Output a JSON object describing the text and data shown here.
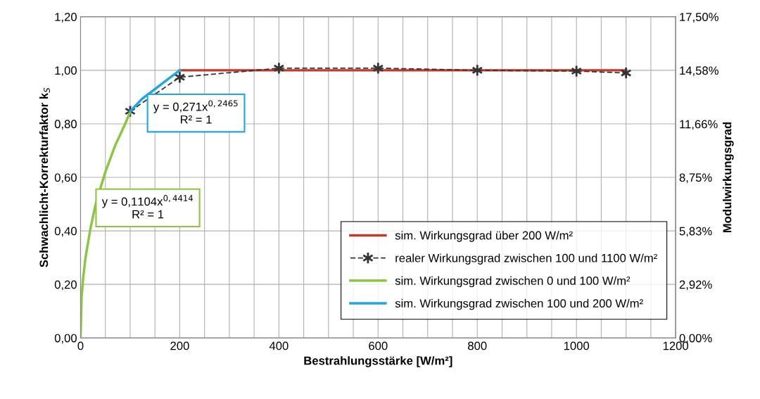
{
  "chart_data": {
    "type": "line",
    "xlabel": "Bestrahlungsstärke [W/m²]",
    "ylabel": "Schwachlicht-Korrekturfaktor k$_{S}$",
    "y2label": "Modulwirkungsgrad",
    "xlim": [
      0,
      1200
    ],
    "xticks": [
      0,
      {
        "value": 50,
        "label": null
      },
      {
        "value": 100,
        "label": null
      },
      {
        "value": 150,
        "label": null
      },
      200,
      {
        "value": 250,
        "label": null
      },
      {
        "value": 300,
        "label": null
      },
      {
        "value": 350,
        "label": null
      },
      400,
      {
        "value": 450,
        "label": null
      },
      {
        "value": 500,
        "label": null
      },
      {
        "value": 550,
        "label": null
      },
      600,
      {
        "value": 650,
        "label": null
      },
      {
        "value": 700,
        "label": null
      },
      {
        "value": 750,
        "label": null
      },
      800,
      {
        "value": 850,
        "label": null
      },
      {
        "value": 900,
        "label": null
      },
      {
        "value": 950,
        "label": null
      },
      1000,
      {
        "value": 1050,
        "label": null
      },
      {
        "value": 1100,
        "label": null
      },
      {
        "value": 1150,
        "label": null
      },
      1200
    ],
    "ylim": [
      0,
      1.2
    ],
    "yticks": [
      {
        "value": 0,
        "label": "0,00"
      },
      {
        "value": 0.2,
        "label": "0,20"
      },
      {
        "value": 0.4,
        "label": "0,40"
      },
      {
        "value": 0.6,
        "label": "0,60"
      },
      {
        "value": 0.8,
        "label": "0,80"
      },
      {
        "value": 1.0,
        "label": "1,00"
      },
      {
        "value": 1.2,
        "label": "1,20"
      }
    ],
    "y2lim": [
      0,
      17.5
    ],
    "y2ticks": [
      {
        "value": 0,
        "label": "0,00%"
      },
      {
        "value": 2.92,
        "label": "2,92%"
      },
      {
        "value": 5.83,
        "label": "5,83%"
      },
      {
        "value": 8.75,
        "label": "8,75%"
      },
      {
        "value": 11.66,
        "label": "11,66%"
      },
      {
        "value": 14.58,
        "label": "14,58%"
      },
      {
        "value": 17.5,
        "label": "17,50%"
      }
    ],
    "grid": true,
    "legend": "lower right",
    "series": [
      {
        "name": "sim. Wirkungsgrad über 200 W/m²",
        "color": "#c0392b",
        "x": [
          200,
          400,
          600,
          800,
          1000,
          1100
        ],
        "values": [
          1.0,
          1.0,
          1.0,
          1.0,
          1.0,
          1.0
        ],
        "marker": "none",
        "line_style": "solid"
      },
      {
        "name": "realer Wirkungsgrad zwischen 100 und 1100 W/m²",
        "color": "#333333",
        "x": [
          100,
          200,
          400,
          600,
          800,
          1000,
          1100
        ],
        "values": [
          0.847,
          0.974,
          1.008,
          1.008,
          1.0,
          0.997,
          0.99
        ],
        "marker": "cross",
        "line_style": "dashed"
      },
      {
        "name": "sim. Wirkungsgrad zwischen 0 und 100 W/m²",
        "color": "#8cc63f",
        "x": [
          0,
          2,
          5,
          10,
          20,
          30,
          40,
          50,
          60,
          70,
          80,
          90,
          100
        ],
        "values": [
          0,
          0.15,
          0.22,
          0.3,
          0.41,
          0.496,
          0.56,
          0.62,
          0.67,
          0.72,
          0.76,
          0.8,
          0.844
        ],
        "marker": "none",
        "line_style": "solid"
      },
      {
        "name": "sim. Wirkungsgrad zwischen 100 und 200 W/m²",
        "color": "#1ea7e1",
        "x": [
          100,
          125,
          150,
          175,
          200
        ],
        "values": [
          0.847,
          0.895,
          0.93,
          0.965,
          1.0
        ],
        "marker": "none",
        "line_style": "solid"
      }
    ],
    "annotations": [
      "y = 0,271x$^{0,2465}$\nR² = 1",
      "y = 0,1104x$^{0,4414}$\nR² = 1"
    ]
  }
}
